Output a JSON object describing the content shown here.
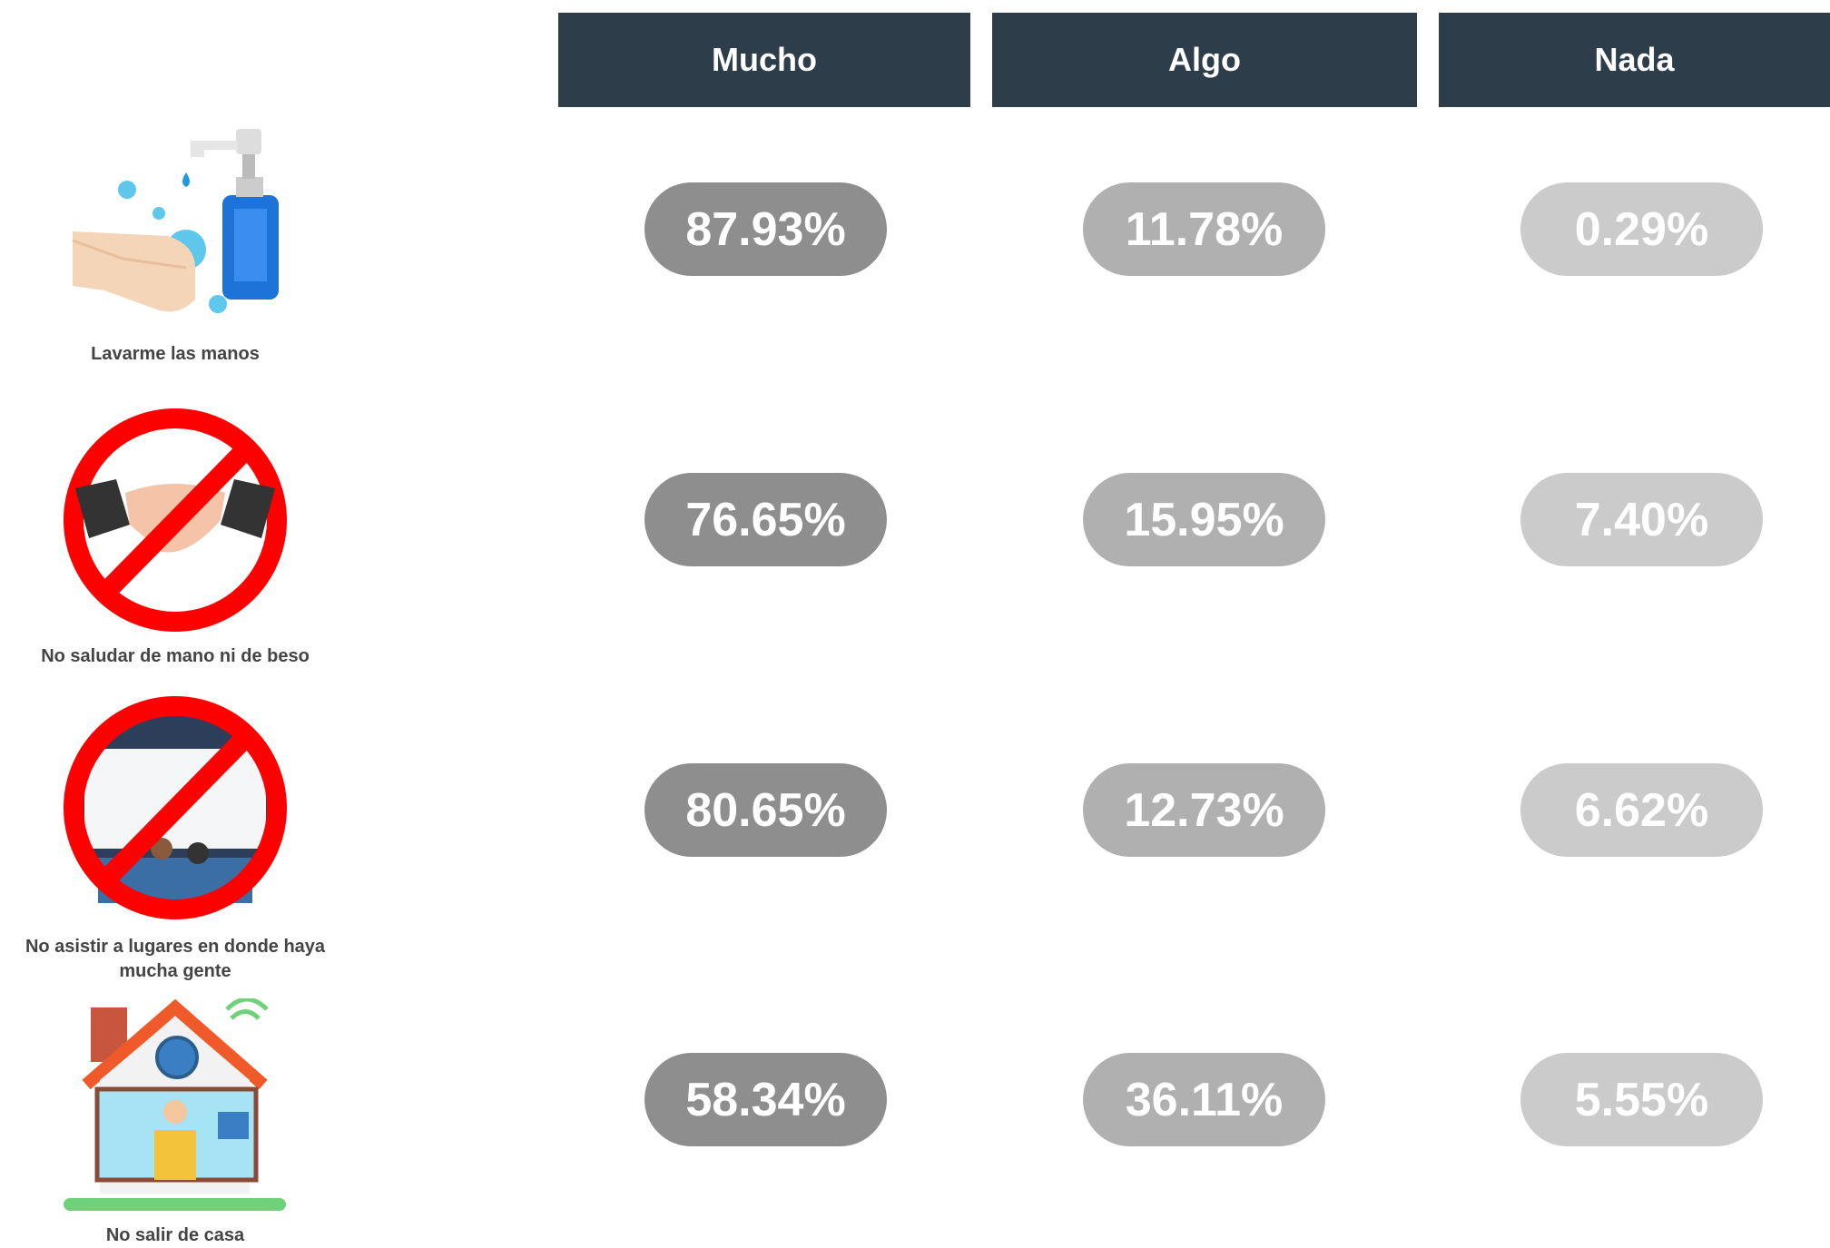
{
  "columns": [
    "Mucho",
    "Algo",
    "Nada"
  ],
  "rows": [
    {
      "label": "Lavarme las manos",
      "cells": [
        "87.93%",
        "11.78%",
        "0.29%"
      ]
    },
    {
      "label": "No saludar de mano ni de beso",
      "cells": [
        "76.65%",
        "15.95%",
        "7.40%"
      ]
    },
    {
      "label": "No asistir a lugares en donde haya mucha gente",
      "cells": [
        "80.65%",
        "12.73%",
        "6.62%"
      ]
    },
    {
      "label": "No salir de casa",
      "cells": [
        "58.34%",
        "36.11%",
        "5.55%"
      ]
    }
  ]
}
